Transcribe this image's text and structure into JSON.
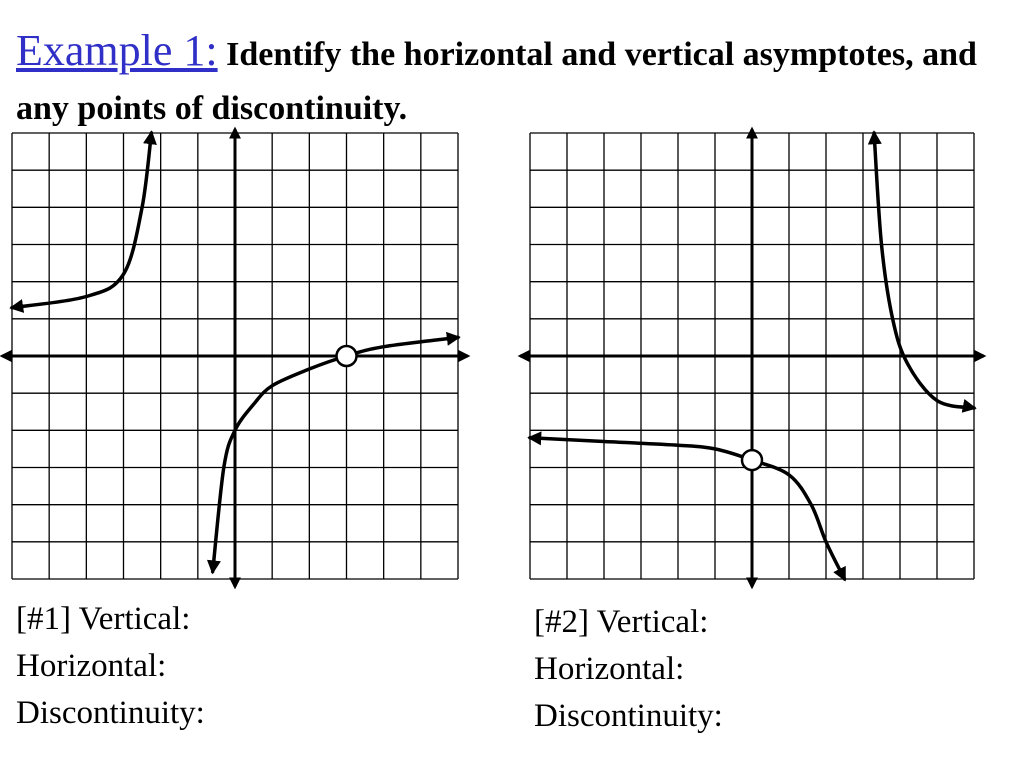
{
  "title": {
    "example": "Example 1:",
    "instruction": "Identify the horizontal and vertical asymptotes, and any points of discontinuity."
  },
  "colors": {
    "example": "#3030c8",
    "text": "#000000",
    "curve": "#000000",
    "hole_fill": "#ffffff"
  },
  "graphs": [
    {
      "id": 1,
      "grid": true,
      "xlim": [
        -6,
        6
      ],
      "ylim": [
        -6,
        6
      ],
      "curves": [
        {
          "points": [
            [
              -6,
              1.3
            ],
            [
              -4,
              1.6
            ],
            [
              -3,
              2.2
            ],
            [
              -2.5,
              4
            ],
            [
              -2.25,
              6
            ]
          ],
          "arrow_start": true,
          "arrow_end": true
        },
        {
          "points": [
            [
              -0.6,
              -5.8
            ],
            [
              -0.3,
              -3
            ],
            [
              0,
              -2
            ],
            [
              0.5,
              -1.3
            ],
            [
              1,
              -0.8
            ],
            [
              2,
              -0.35
            ],
            [
              3,
              0
            ],
            [
              4,
              0.25
            ],
            [
              6,
              0.5
            ]
          ],
          "arrow_start": true,
          "arrow_end": true
        }
      ],
      "holes": [
        [
          3,
          0
        ]
      ],
      "labels": {
        "vertical": "[#1] Vertical:",
        "horizontal": "Horizontal:",
        "discontinuity": "Discontinuity:"
      }
    },
    {
      "id": 2,
      "grid": true,
      "xlim": [
        -6,
        6
      ],
      "ylim": [
        -6,
        6
      ],
      "curves": [
        {
          "points": [
            [
              -6,
              -2.2
            ],
            [
              -4,
              -2.3
            ],
            [
              -2,
              -2.4
            ],
            [
              -1,
              -2.5
            ],
            [
              0,
              -2.8
            ],
            [
              1,
              -3.2
            ],
            [
              1.6,
              -4
            ],
            [
              2,
              -5
            ],
            [
              2.5,
              -6
            ]
          ],
          "arrow_start": true,
          "arrow_end": true
        },
        {
          "points": [
            [
              3.3,
              6
            ],
            [
              3.5,
              3
            ],
            [
              3.8,
              1
            ],
            [
              4.2,
              -0.2
            ],
            [
              5,
              -1.2
            ],
            [
              6,
              -1.4
            ]
          ],
          "arrow_start": true,
          "arrow_end": true
        }
      ],
      "holes": [
        [
          0,
          -2.8
        ]
      ],
      "labels": {
        "vertical": "[#2] Vertical:",
        "horizontal": "Horizontal:",
        "discontinuity": "Discontinuity:"
      }
    }
  ]
}
